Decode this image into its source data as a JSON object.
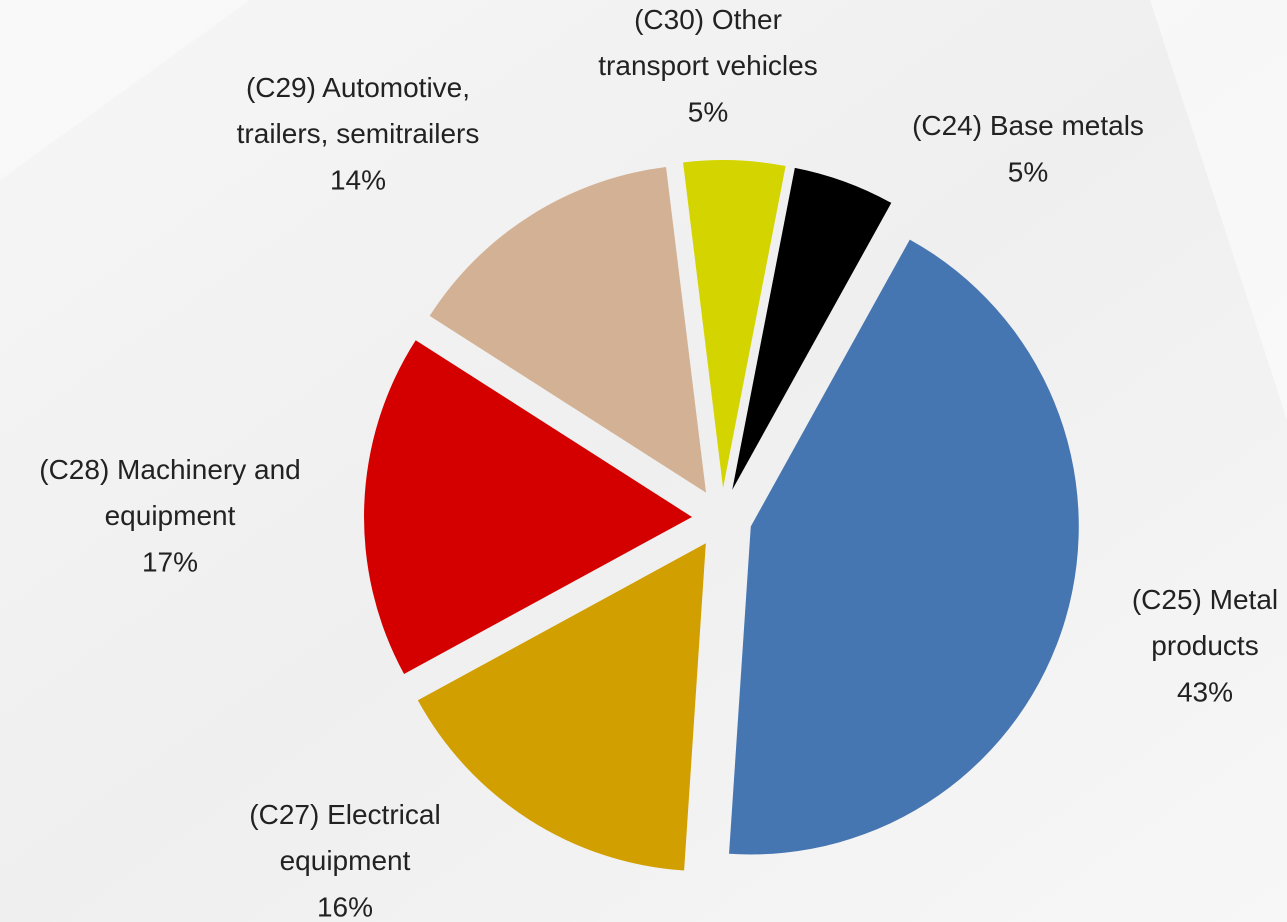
{
  "chart_data": {
    "type": "pie",
    "categories": [
      "(C24) Base metals",
      "(C25) Metal products",
      "(C27) Electrical equipment",
      "(C28) Machinery and equipment",
      "(C29) Automotive, trailers, semitrailers",
      "(C30) Other transport vehicles"
    ],
    "values": [
      5,
      43,
      16,
      17,
      14,
      5
    ],
    "value_labels": [
      "5%",
      "43%",
      "16%",
      "17%",
      "14%",
      "5%"
    ],
    "colors": [
      "#000000",
      "#4676b2",
      "#d29f00",
      "#d40000",
      "#d3b195",
      "#d4d400"
    ]
  }
}
